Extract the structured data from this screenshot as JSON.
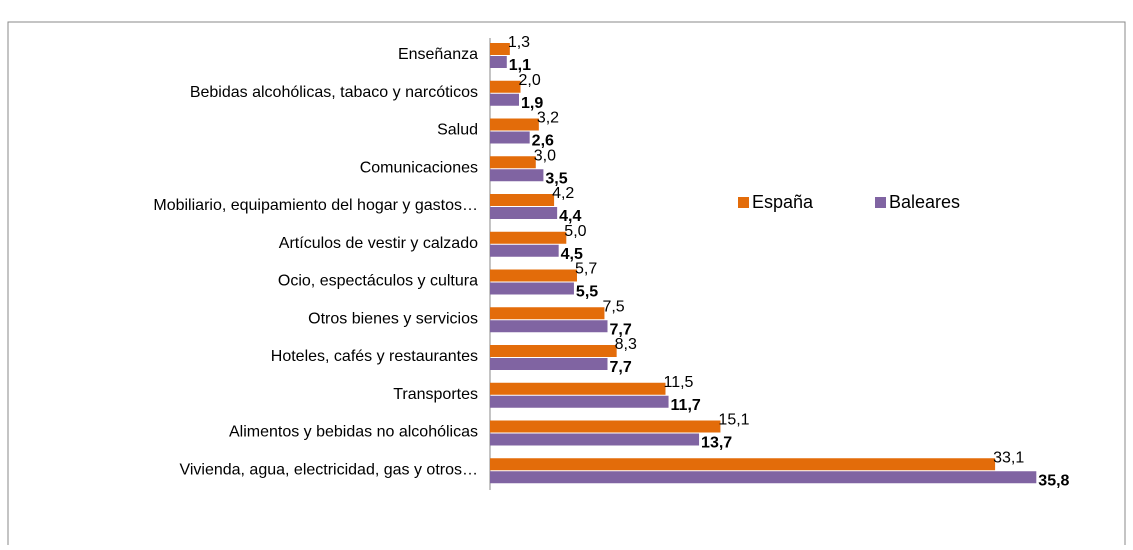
{
  "chart_data": {
    "type": "bar",
    "orientation": "horizontal",
    "categories": [
      "Enseñanza",
      "Bebidas alcohólicas, tabaco y narcóticos",
      "Salud",
      "Comunicaciones",
      "Mobiliario, equipamiento del hogar y gastos…",
      "Artículos de vestir y calzado",
      "Ocio, espectáculos y cultura",
      "Otros bienes y servicios",
      "Hoteles, cafés y restaurantes",
      "Transportes",
      "Alimentos y bebidas no alcohólicas",
      "Vivienda, agua, electricidad, gas y otros…"
    ],
    "series": [
      {
        "name": "España",
        "color": "#e36c0a",
        "values": [
          1.3,
          2.0,
          3.2,
          3.0,
          4.2,
          5.0,
          5.7,
          7.5,
          8.3,
          11.5,
          15.1,
          33.1
        ],
        "value_labels": [
          "1,3",
          "2,0",
          "3,2",
          "3,0",
          "4,2",
          "5,0",
          "5,7",
          "7,5",
          "8,3",
          "11,5",
          "15,1",
          "33,1"
        ]
      },
      {
        "name": "Baleares",
        "color": "#8064a2",
        "values": [
          1.1,
          1.9,
          2.6,
          3.5,
          4.4,
          4.5,
          5.5,
          7.7,
          7.7,
          11.7,
          13.7,
          35.8
        ],
        "value_labels": [
          "1,1",
          "1,9",
          "2,6",
          "3,5",
          "4,4",
          "4,5",
          "5,5",
          "7,7",
          "7,7",
          "11,7",
          "13,7",
          "35,8"
        ]
      }
    ],
    "legend": "right"
  }
}
